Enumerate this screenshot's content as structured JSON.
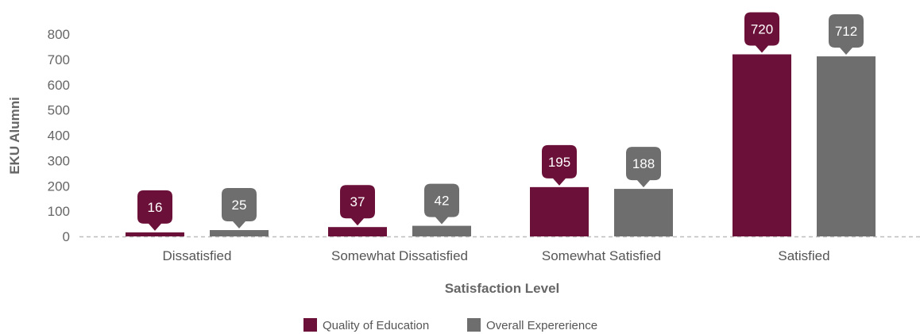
{
  "chart_data": {
    "type": "bar",
    "title": "",
    "xlabel": "Satisfaction Level",
    "ylabel": "EKU Alumni",
    "ylim": [
      0,
      800
    ],
    "yticks": [
      0,
      100,
      200,
      300,
      400,
      500,
      600,
      700,
      800
    ],
    "categories": [
      "Dissatisfied",
      "Somewhat Dissatisfied",
      "Somewhat Satisfied",
      "Satisfied"
    ],
    "series": [
      {
        "name": "Quality of Education",
        "color": "#6b1038",
        "values": [
          16,
          37,
          195,
          720
        ]
      },
      {
        "name": "Overall Expererience",
        "color": "#6e6e6e",
        "values": [
          25,
          42,
          188,
          712
        ]
      }
    ],
    "grid": false,
    "legend": "bottom-center",
    "data_labels": true
  }
}
